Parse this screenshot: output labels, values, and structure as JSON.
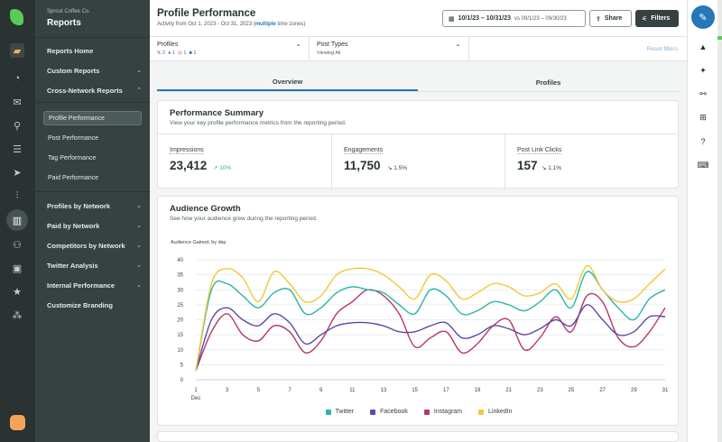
{
  "nav": {
    "org": "Sprout Coffee Co.",
    "app": "Reports",
    "items": [
      {
        "label": "Reports Home",
        "chevron": ""
      },
      {
        "label": "Custom Reports",
        "chevron": "⌄"
      },
      {
        "label": "Cross-Network Reports",
        "chevron": "⌃"
      }
    ],
    "sub_items": [
      "Profile Performance",
      "Post Performance",
      "Tag Performance",
      "Paid Performance"
    ],
    "groups": [
      {
        "label": "Profiles by Network",
        "chevron": "⌄"
      },
      {
        "label": "Paid by Network",
        "chevron": "⌄"
      },
      {
        "label": "Competitors by Network",
        "chevron": "⌄"
      },
      {
        "label": "Twitter Analysis",
        "chevron": "⌄"
      },
      {
        "label": "Internal Performance",
        "chevron": "⌄"
      },
      {
        "label": "Customize Branding",
        "chevron": ""
      }
    ]
  },
  "header": {
    "title": "Profile Performance",
    "subtitle_pre": "Activity from Oct 1, 2023 - Oct 31, 2023 (",
    "subtitle_link": "multiple",
    "subtitle_post": " time zones)",
    "date_range": "10/1/23 – 10/31/23",
    "compare": "vs 09/1/23 – 09/30/23",
    "share_label": "Share",
    "filters_label": "Filters"
  },
  "filters": {
    "profiles_label": "Profiles",
    "profiles_counts": {
      "x": "2",
      "facebook": "1",
      "instagram": "1",
      "linkedin": "1"
    },
    "post_types_label": "Post Types",
    "post_types_value": "Viewing All",
    "reset_label": "Reset filters"
  },
  "tabs": [
    "Overview",
    "Profiles"
  ],
  "summary": {
    "title": "Performance Summary",
    "subtitle": "View your key profile performance metrics from the reporting period.",
    "metrics": [
      {
        "label": "Impressions",
        "value": "23,412",
        "delta": "10%",
        "direction": "up"
      },
      {
        "label": "Engagements",
        "value": "11,750",
        "delta": "1.5%",
        "direction": "down"
      },
      {
        "label": "Post Link Clicks",
        "value": "157",
        "delta": "1.1%",
        "direction": "down"
      }
    ]
  },
  "growth": {
    "title": "Audience Growth",
    "subtitle": "See how your audience grew during the reporting period."
  },
  "chart_data": {
    "type": "line",
    "title": "Audience Gained, by day",
    "x": [
      1,
      2,
      3,
      4,
      5,
      6,
      7,
      8,
      9,
      10,
      11,
      12,
      13,
      14,
      15,
      16,
      17,
      18,
      19,
      20,
      21,
      22,
      23,
      24,
      25,
      26,
      27,
      28,
      29,
      30,
      31
    ],
    "x_month_label": "Dec",
    "ylim": [
      0,
      40
    ],
    "yticks": [
      0,
      5,
      10,
      15,
      20,
      25,
      30,
      35,
      40
    ],
    "grid": true,
    "legend": "bottom",
    "series": [
      {
        "name": "Twitter",
        "color": "#2bb5a8",
        "values": [
          3,
          30,
          32,
          28,
          24,
          29,
          30,
          22,
          24,
          29,
          31,
          30,
          29,
          25,
          22,
          30,
          28,
          22,
          23,
          26,
          25,
          23,
          26,
          30,
          24,
          36,
          30,
          24,
          20,
          27,
          30
        ]
      },
      {
        "name": "Facebook",
        "color": "#5c4aa5",
        "values": [
          3,
          20,
          24,
          20,
          18,
          22,
          19,
          12,
          15,
          18,
          19,
          19,
          18,
          16,
          16,
          18,
          19,
          14,
          15,
          18,
          17,
          15,
          17,
          20,
          18,
          25,
          20,
          15,
          16,
          21,
          21
        ]
      },
      {
        "name": "Instagram",
        "color": "#b5376f",
        "values": [
          3,
          16,
          22,
          15,
          13,
          18,
          16,
          9,
          13,
          22,
          26,
          30,
          28,
          22,
          11,
          14,
          16,
          9,
          12,
          18,
          20,
          10,
          14,
          21,
          16,
          28,
          26,
          14,
          11,
          16,
          24
        ]
      },
      {
        "name": "LinkedIn",
        "color": "#f0c93a",
        "values": [
          3,
          32,
          37,
          34,
          26,
          36,
          32,
          26,
          28,
          35,
          37,
          37,
          35,
          31,
          27,
          35,
          33,
          27,
          29,
          32,
          31,
          28,
          29,
          32,
          27,
          38,
          30,
          26,
          27,
          32,
          37
        ]
      }
    ]
  },
  "rail_icons": [
    "folder-icon",
    "gauge-icon",
    "inbox-icon",
    "pin-icon",
    "list-icon",
    "send-icon",
    "waveform-icon",
    "reports-icon",
    "people-icon",
    "bot-icon",
    "star-icon",
    "network-icon"
  ],
  "right_icons": [
    "compose-icon",
    "alert-icon",
    "feedback-icon",
    "link-icon",
    "add-square-icon",
    "help-icon",
    "keyboard-icon"
  ]
}
